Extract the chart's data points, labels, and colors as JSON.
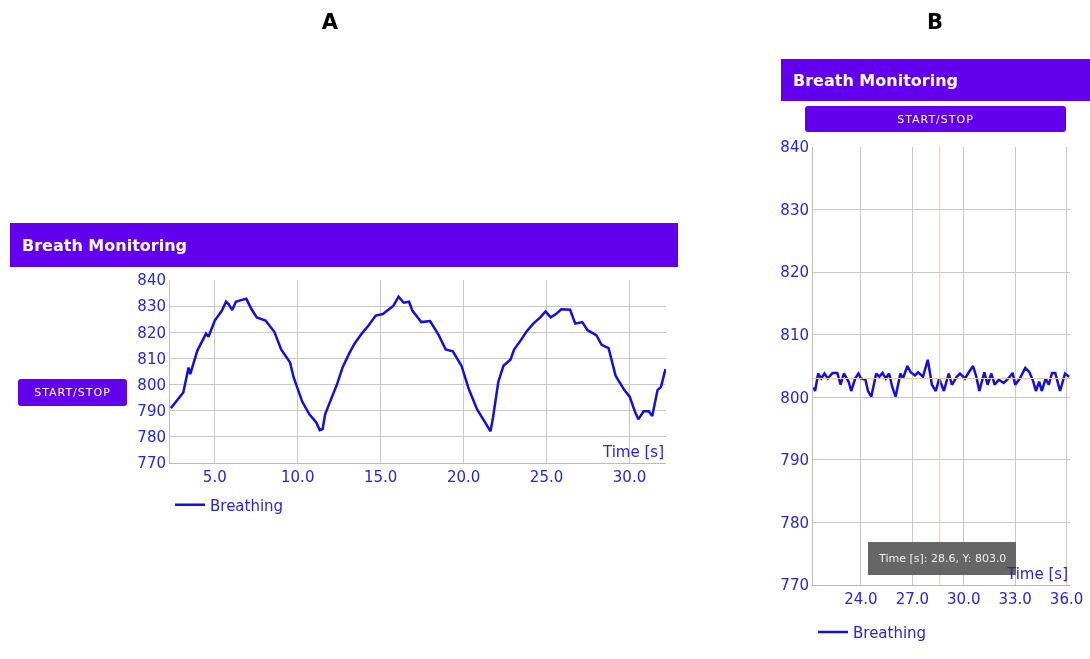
{
  "chart_data": [
    {
      "type": "line",
      "title": "A",
      "subtitle": "Breath Monitoring",
      "xlabel": "Time [s]",
      "annotations": [
        "START/STOP"
      ],
      "xlim": [
        2.3,
        32.2
      ],
      "xticks": [
        {
          "value": 5,
          "label": "5.0"
        },
        {
          "value": 10,
          "label": "10.0"
        },
        {
          "value": 15,
          "label": "15.0"
        },
        {
          "value": 20,
          "label": "20.0"
        },
        {
          "value": 25,
          "label": "25.0"
        },
        {
          "value": 30,
          "label": "30.0"
        }
      ],
      "ylim": [
        770,
        840
      ],
      "yticks": [
        770,
        780,
        790,
        800,
        810,
        820,
        830,
        840
      ],
      "grid": true,
      "legend": "bottom left",
      "marker": "none",
      "line_style": "solid",
      "series": [
        {
          "name": "Breathing",
          "color": "#1010e0",
          "x": [
            2.35,
            3.1,
            3.42,
            3.52,
            3.95,
            4.47,
            4.62,
            5.0,
            5.42,
            5.68,
            5.84,
            6.05,
            6.27,
            6.58,
            6.9,
            7.22,
            7.53,
            8.06,
            8.59,
            9.0,
            9.54,
            9.75,
            10.27,
            10.7,
            11.12,
            11.33,
            11.5,
            11.65,
            12.07,
            12.38,
            12.7,
            13.12,
            13.44,
            13.86,
            14.28,
            14.7,
            15.13,
            15.44,
            15.76,
            16.08,
            16.39,
            16.71,
            16.92,
            17.45,
            17.98,
            18.5,
            18.92,
            19.35,
            19.87,
            20.3,
            20.82,
            21.24,
            21.62,
            21.77,
            22.09,
            22.4,
            22.83,
            23.04,
            23.46,
            23.78,
            24.2,
            24.62,
            24.94,
            25.25,
            25.57,
            25.89,
            26.42,
            26.73,
            27.15,
            27.47,
            28.0,
            28.32,
            28.74,
            29.16,
            29.69,
            30.01,
            30.32,
            30.53,
            30.85,
            31.16,
            31.37,
            31.69,
            31.9,
            32.17
          ],
          "values": [
            791,
            797,
            806.5,
            804,
            813,
            819.5,
            818.3,
            824.5,
            828.2,
            831.7,
            830.7,
            828.5,
            831.7,
            832.3,
            832.8,
            828.8,
            825.7,
            824.5,
            820.2,
            813.4,
            808.4,
            802.8,
            793.5,
            788.6,
            785.5,
            782.6,
            783,
            788.6,
            795.4,
            800.3,
            806.5,
            812.1,
            815.8,
            819.5,
            822.7,
            826.4,
            827,
            828.5,
            830.1,
            833.6,
            831.3,
            831.7,
            828.2,
            823.9,
            824.3,
            818.9,
            813.4,
            812.7,
            807.2,
            798.5,
            790.4,
            786.1,
            782.1,
            787.3,
            801,
            807.2,
            809.6,
            813.4,
            817.1,
            820.2,
            823.3,
            825.7,
            828,
            825.7,
            827,
            828.8,
            828.6,
            823.3,
            823.9,
            820.8,
            818.9,
            815.2,
            813.9,
            803.4,
            797.9,
            795.4,
            789.8,
            786.7,
            789.8,
            789.8,
            788,
            797.9,
            799.1,
            805.9
          ]
        }
      ]
    },
    {
      "type": "line",
      "title": "B",
      "subtitle": "Breath Monitoring",
      "xlabel": "Time [s]",
      "annotations": [
        "START/STOP",
        "Time [s]: 28.6, Y: 803.0"
      ],
      "xlim": [
        21.2,
        36.2
      ],
      "xticks": [
        {
          "value": 24,
          "label": "24.0"
        },
        {
          "value": 27,
          "label": "27.0"
        },
        {
          "value": 30,
          "label": "30.0"
        },
        {
          "value": 33,
          "label": "33.0"
        },
        {
          "value": 36,
          "label": "36.0"
        }
      ],
      "ylim": [
        770,
        840
      ],
      "yticks": [
        770,
        780,
        790,
        800,
        810,
        820,
        830,
        840
      ],
      "grid": true,
      "legend": "bottom left",
      "marker": "none",
      "line_style": "solid",
      "ref_lines": [
        {
          "axis": "x",
          "value": 28.6,
          "color": "#f5c99a"
        },
        {
          "axis": "y",
          "value": 803,
          "color": "#f5c99a"
        }
      ],
      "series": [
        {
          "name": "Breathing",
          "color": "#1010e0",
          "x": [
            21.25,
            21.32,
            21.5,
            21.68,
            21.87,
            22.06,
            22.34,
            22.62,
            22.81,
            23.0,
            23.28,
            23.43,
            23.66,
            23.85,
            24.0,
            24.26,
            24.41,
            24.6,
            24.89,
            25.07,
            25.26,
            25.45,
            25.64,
            25.83,
            26.02,
            26.3,
            26.45,
            26.71,
            26.9,
            27.15,
            27.33,
            27.62,
            27.9,
            28.14,
            28.37,
            28.56,
            28.84,
            29.12,
            29.31,
            29.6,
            29.78,
            30.07,
            30.25,
            30.54,
            30.73,
            30.91,
            31.2,
            31.39,
            31.61,
            31.8,
            32.04,
            32.33,
            32.61,
            32.85,
            33.0,
            33.27,
            33.59,
            33.83,
            34.06,
            34.21,
            34.4,
            34.55,
            34.78,
            34.96,
            35.15,
            35.34,
            35.62,
            35.91,
            36.15
          ],
          "values": [
            801.6,
            801,
            803.8,
            803,
            803.8,
            803,
            803.9,
            803.9,
            802,
            803.8,
            802.5,
            801,
            803,
            803.8,
            803,
            802.8,
            801,
            800.1,
            803.8,
            803.3,
            803.9,
            803,
            803.8,
            801.6,
            800.1,
            803.8,
            803,
            805,
            804,
            803.5,
            804,
            803.3,
            806,
            802,
            801,
            803,
            801,
            803.8,
            802,
            803.3,
            803.8,
            803,
            803.8,
            805,
            803.3,
            801,
            804,
            802,
            803.8,
            802,
            802.8,
            802.3,
            803,
            803.9,
            802,
            803,
            804.7,
            804,
            802.5,
            801,
            802.5,
            801,
            803,
            802,
            803.9,
            803.9,
            801,
            803.8,
            803.3
          ]
        }
      ]
    }
  ]
}
